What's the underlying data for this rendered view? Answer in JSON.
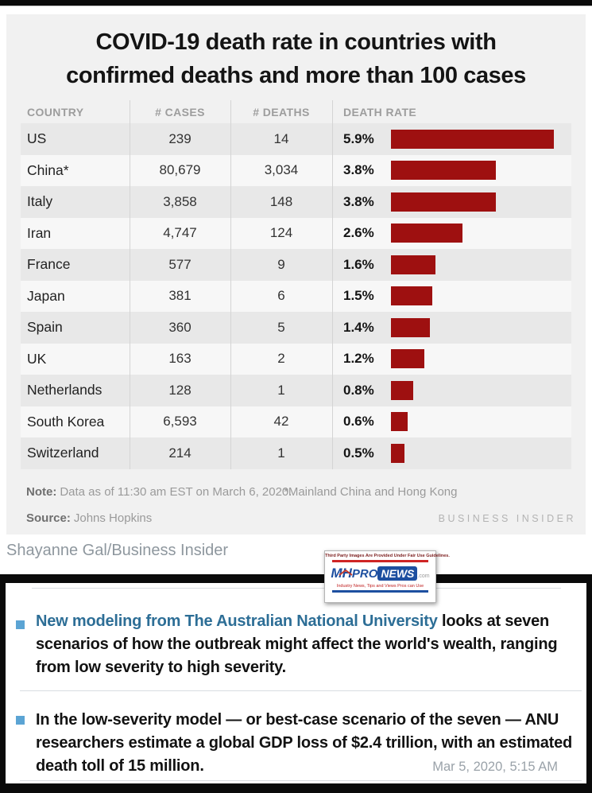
{
  "page": {
    "caption": "Shayanne Gal/Business Insider",
    "timestamp": "Mar 5, 2020, 5:15 AM"
  },
  "infographic": {
    "title_line1": "COVID-19 death rate in countries with",
    "title_line2": "confirmed deaths and more than 100 cases",
    "note_label": "Note:",
    "note_text": "Data as of 11:30 am EST on March 6, 2020.",
    "footnote": "*Mainland China and Hong Kong",
    "source_label": "Source:",
    "source_text": "Johns Hopkins",
    "branding": "BUSINESS INSIDER"
  },
  "chart_data": {
    "type": "bar",
    "title": "COVID-19 death rate in countries with confirmed deaths and more than 100 cases",
    "columns": [
      "COUNTRY",
      "# CASES",
      "# DEATHS",
      "DEATH RATE"
    ],
    "categories": [
      "US",
      "China*",
      "Italy",
      "Iran",
      "France",
      "Japan",
      "Spain",
      "UK",
      "Netherlands",
      "South Korea",
      "Switzerland"
    ],
    "series": [
      {
        "name": "# CASES",
        "values": [
          239,
          80679,
          3858,
          4747,
          577,
          381,
          360,
          163,
          128,
          6593,
          214
        ]
      },
      {
        "name": "# DEATHS",
        "values": [
          14,
          3034,
          148,
          124,
          9,
          6,
          5,
          2,
          1,
          42,
          1
        ]
      },
      {
        "name": "DEATH RATE (%)",
        "values": [
          5.9,
          3.8,
          3.8,
          2.6,
          1.6,
          1.5,
          1.4,
          1.2,
          0.8,
          0.6,
          0.5
        ]
      }
    ],
    "rows": [
      {
        "country": "US",
        "cases": "239",
        "deaths": "14",
        "rate": 5.9,
        "rate_label": "5.9%"
      },
      {
        "country": "China*",
        "cases": "80,679",
        "deaths": "3,034",
        "rate": 3.8,
        "rate_label": "3.8%"
      },
      {
        "country": "Italy",
        "cases": "3,858",
        "deaths": "148",
        "rate": 3.8,
        "rate_label": "3.8%"
      },
      {
        "country": "Iran",
        "cases": "4,747",
        "deaths": "124",
        "rate": 2.6,
        "rate_label": "2.6%"
      },
      {
        "country": "France",
        "cases": "577",
        "deaths": "9",
        "rate": 1.6,
        "rate_label": "1.6%"
      },
      {
        "country": "Japan",
        "cases": "381",
        "deaths": "6",
        "rate": 1.5,
        "rate_label": "1.5%"
      },
      {
        "country": "Spain",
        "cases": "360",
        "deaths": "5",
        "rate": 1.4,
        "rate_label": "1.4%"
      },
      {
        "country": "UK",
        "cases": "163",
        "deaths": "2",
        "rate": 1.2,
        "rate_label": "1.2%"
      },
      {
        "country": "Netherlands",
        "cases": "128",
        "deaths": "1",
        "rate": 0.8,
        "rate_label": "0.8%"
      },
      {
        "country": "South Korea",
        "cases": "6,593",
        "deaths": "42",
        "rate": 0.6,
        "rate_label": "0.6%"
      },
      {
        "country": "Switzerland",
        "cases": "214",
        "deaths": "1",
        "rate": 0.5,
        "rate_label": "0.5%"
      }
    ],
    "xlim": [
      0,
      5.9
    ],
    "bar_color": "#9e1010",
    "grid": false,
    "legend": "none",
    "note": "Data as of 11:30 am EST on March 6, 2020. *Mainland China and Hong Kong",
    "source": "Johns Hopkins"
  },
  "watermark": {
    "disclaimer": "Third Party Images Are Provided Under Fair Use Guidelines.",
    "logo_mh": "MH",
    "logo_pro": "PRO",
    "logo_news": "NEWS",
    "logo_tld": ".com",
    "tagline": "Industry News, Tips and Views Pros can Use",
    "red": "#cf2525",
    "blue": "#1d4fa0"
  },
  "article": {
    "bullet_color": "#5ba4d4",
    "link_color": "#2d6e96",
    "bullets": [
      {
        "link_text": "New modeling from The Australian National University",
        "rest_text": " looks at seven scenarios of how the outbreak might affect the world's wealth, ranging from low severity to high severity."
      },
      {
        "link_text": "",
        "rest_text": "In the low-severity model — or best-case scenario of the seven — ANU researchers estimate a global GDP loss of $2.4 trillion, with an estimated death toll of 15 million."
      }
    ]
  }
}
